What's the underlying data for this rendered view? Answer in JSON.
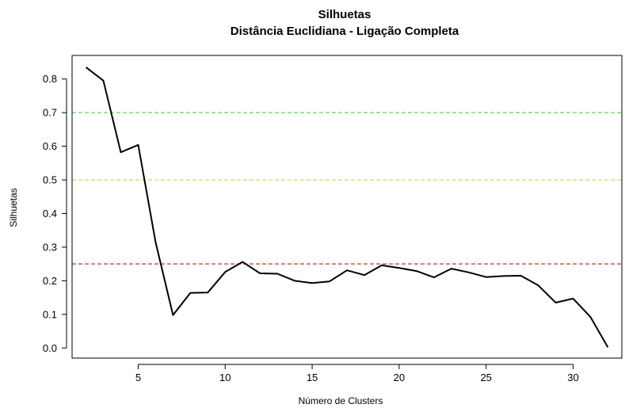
{
  "chart_data": {
    "type": "line",
    "title": "Silhuetas",
    "subtitle": "Distância Euclidiana - Ligação Completa",
    "xlabel": "Número de Clusters",
    "ylabel": "Silhuetas",
    "xlim": [
      1.2,
      32.8
    ],
    "ylim": [
      -0.03,
      0.87
    ],
    "xticks": [
      5,
      10,
      15,
      20,
      25,
      30
    ],
    "yticks": [
      0.0,
      0.1,
      0.2,
      0.3,
      0.4,
      0.5,
      0.6,
      0.7,
      0.8
    ],
    "ytick_labels": [
      "0.0",
      "0.1",
      "0.2",
      "0.3",
      "0.4",
      "0.5",
      "0.6",
      "0.7",
      "0.8"
    ],
    "grid": false,
    "series": [
      {
        "color": "#000000",
        "x": [
          2,
          3,
          4,
          5,
          6,
          7,
          8,
          9,
          10,
          11,
          12,
          13,
          14,
          15,
          16,
          17,
          18,
          19,
          20,
          21,
          22,
          23,
          24,
          25,
          26,
          27,
          28,
          29,
          30,
          31,
          32
        ],
        "y": [
          0.835,
          0.795,
          0.582,
          0.604,
          0.315,
          0.098,
          0.164,
          0.165,
          0.226,
          0.256,
          0.222,
          0.221,
          0.2,
          0.193,
          0.198,
          0.231,
          0.217,
          0.246,
          0.238,
          0.229,
          0.21,
          0.236,
          0.225,
          0.211,
          0.214,
          0.215,
          0.186,
          0.135,
          0.147,
          0.092,
          0.002
        ]
      }
    ],
    "reference_lines": [
      {
        "y": 0.7,
        "color": "#5fd35f",
        "style": "dashed"
      },
      {
        "y": 0.5,
        "color": "#c8d64a",
        "style": "dashed"
      },
      {
        "y": 0.25,
        "color": "#c0392b",
        "style": "dashed"
      }
    ]
  }
}
